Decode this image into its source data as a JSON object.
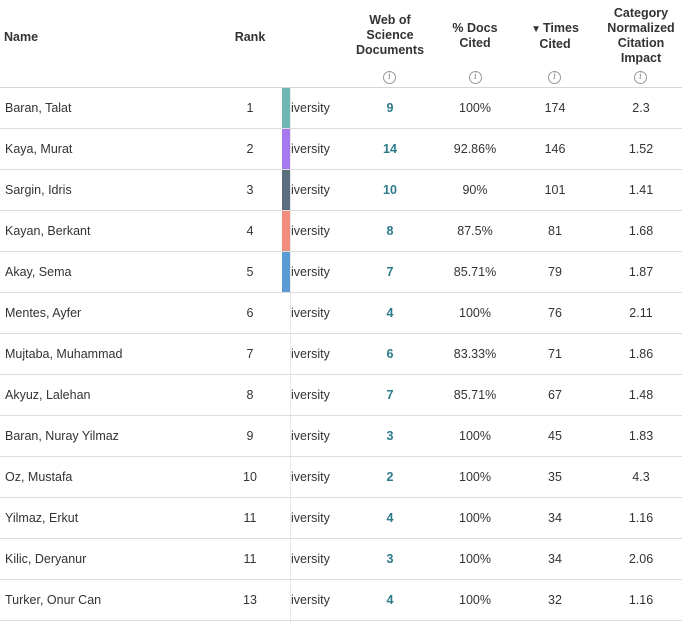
{
  "columns": {
    "name": "Name",
    "rank": "Rank",
    "wos_documents": "Web of Science Documents",
    "pct_docs_cited": "% Docs Cited",
    "times_cited_arrow": "▼",
    "times_cited": "Times Cited",
    "cnci": "Category Normalized Citation Impact",
    "info_icon": "i"
  },
  "rows": [
    {
      "name": "Baran, Talat",
      "rank": "1",
      "institution": "iversity",
      "swatch": "#6fb7b3",
      "wos": "9",
      "pct": "100%",
      "times": "174",
      "cnci": "2.3"
    },
    {
      "name": "Kaya, Murat",
      "rank": "2",
      "institution": "iversity",
      "swatch": "#a679f0",
      "wos": "14",
      "pct": "92.86%",
      "times": "146",
      "cnci": "1.52"
    },
    {
      "name": "Sargin, Idris",
      "rank": "3",
      "institution": "iversity",
      "swatch": "#5b6e80",
      "wos": "10",
      "pct": "90%",
      "times": "101",
      "cnci": "1.41"
    },
    {
      "name": "Kayan, Berkant",
      "rank": "4",
      "institution": "iversity",
      "swatch": "#f28c7c",
      "wos": "8",
      "pct": "87.5%",
      "times": "81",
      "cnci": "1.68"
    },
    {
      "name": "Akay, Sema",
      "rank": "5",
      "institution": "iversity",
      "swatch": "#5b9bd5",
      "wos": "7",
      "pct": "85.71%",
      "times": "79",
      "cnci": "1.87"
    },
    {
      "name": "Mentes, Ayfer",
      "rank": "6",
      "institution": "iversity",
      "swatch": "",
      "wos": "4",
      "pct": "100%",
      "times": "76",
      "cnci": "2.11"
    },
    {
      "name": "Mujtaba, Muhammad",
      "rank": "7",
      "institution": "iversity",
      "swatch": "",
      "wos": "6",
      "pct": "83.33%",
      "times": "71",
      "cnci": "1.86"
    },
    {
      "name": "Akyuz, Lalehan",
      "rank": "8",
      "institution": "iversity",
      "swatch": "",
      "wos": "7",
      "pct": "85.71%",
      "times": "67",
      "cnci": "1.48"
    },
    {
      "name": "Baran, Nuray Yilmaz",
      "rank": "9",
      "institution": "iversity",
      "swatch": "",
      "wos": "3",
      "pct": "100%",
      "times": "45",
      "cnci": "1.83"
    },
    {
      "name": "Oz, Mustafa",
      "rank": "10",
      "institution": "iversity",
      "swatch": "",
      "wos": "2",
      "pct": "100%",
      "times": "35",
      "cnci": "4.3"
    },
    {
      "name": "Yilmaz, Erkut",
      "rank": "11",
      "institution": "iversity",
      "swatch": "",
      "wos": "4",
      "pct": "100%",
      "times": "34",
      "cnci": "1.16"
    },
    {
      "name": "Kilic, Deryanur",
      "rank": "11",
      "institution": "iversity",
      "swatch": "",
      "wos": "3",
      "pct": "100%",
      "times": "34",
      "cnci": "2.06"
    },
    {
      "name": "Turker, Onur Can",
      "rank": "13",
      "institution": "iversity",
      "swatch": "",
      "wos": "4",
      "pct": "100%",
      "times": "32",
      "cnci": "1.16"
    }
  ]
}
